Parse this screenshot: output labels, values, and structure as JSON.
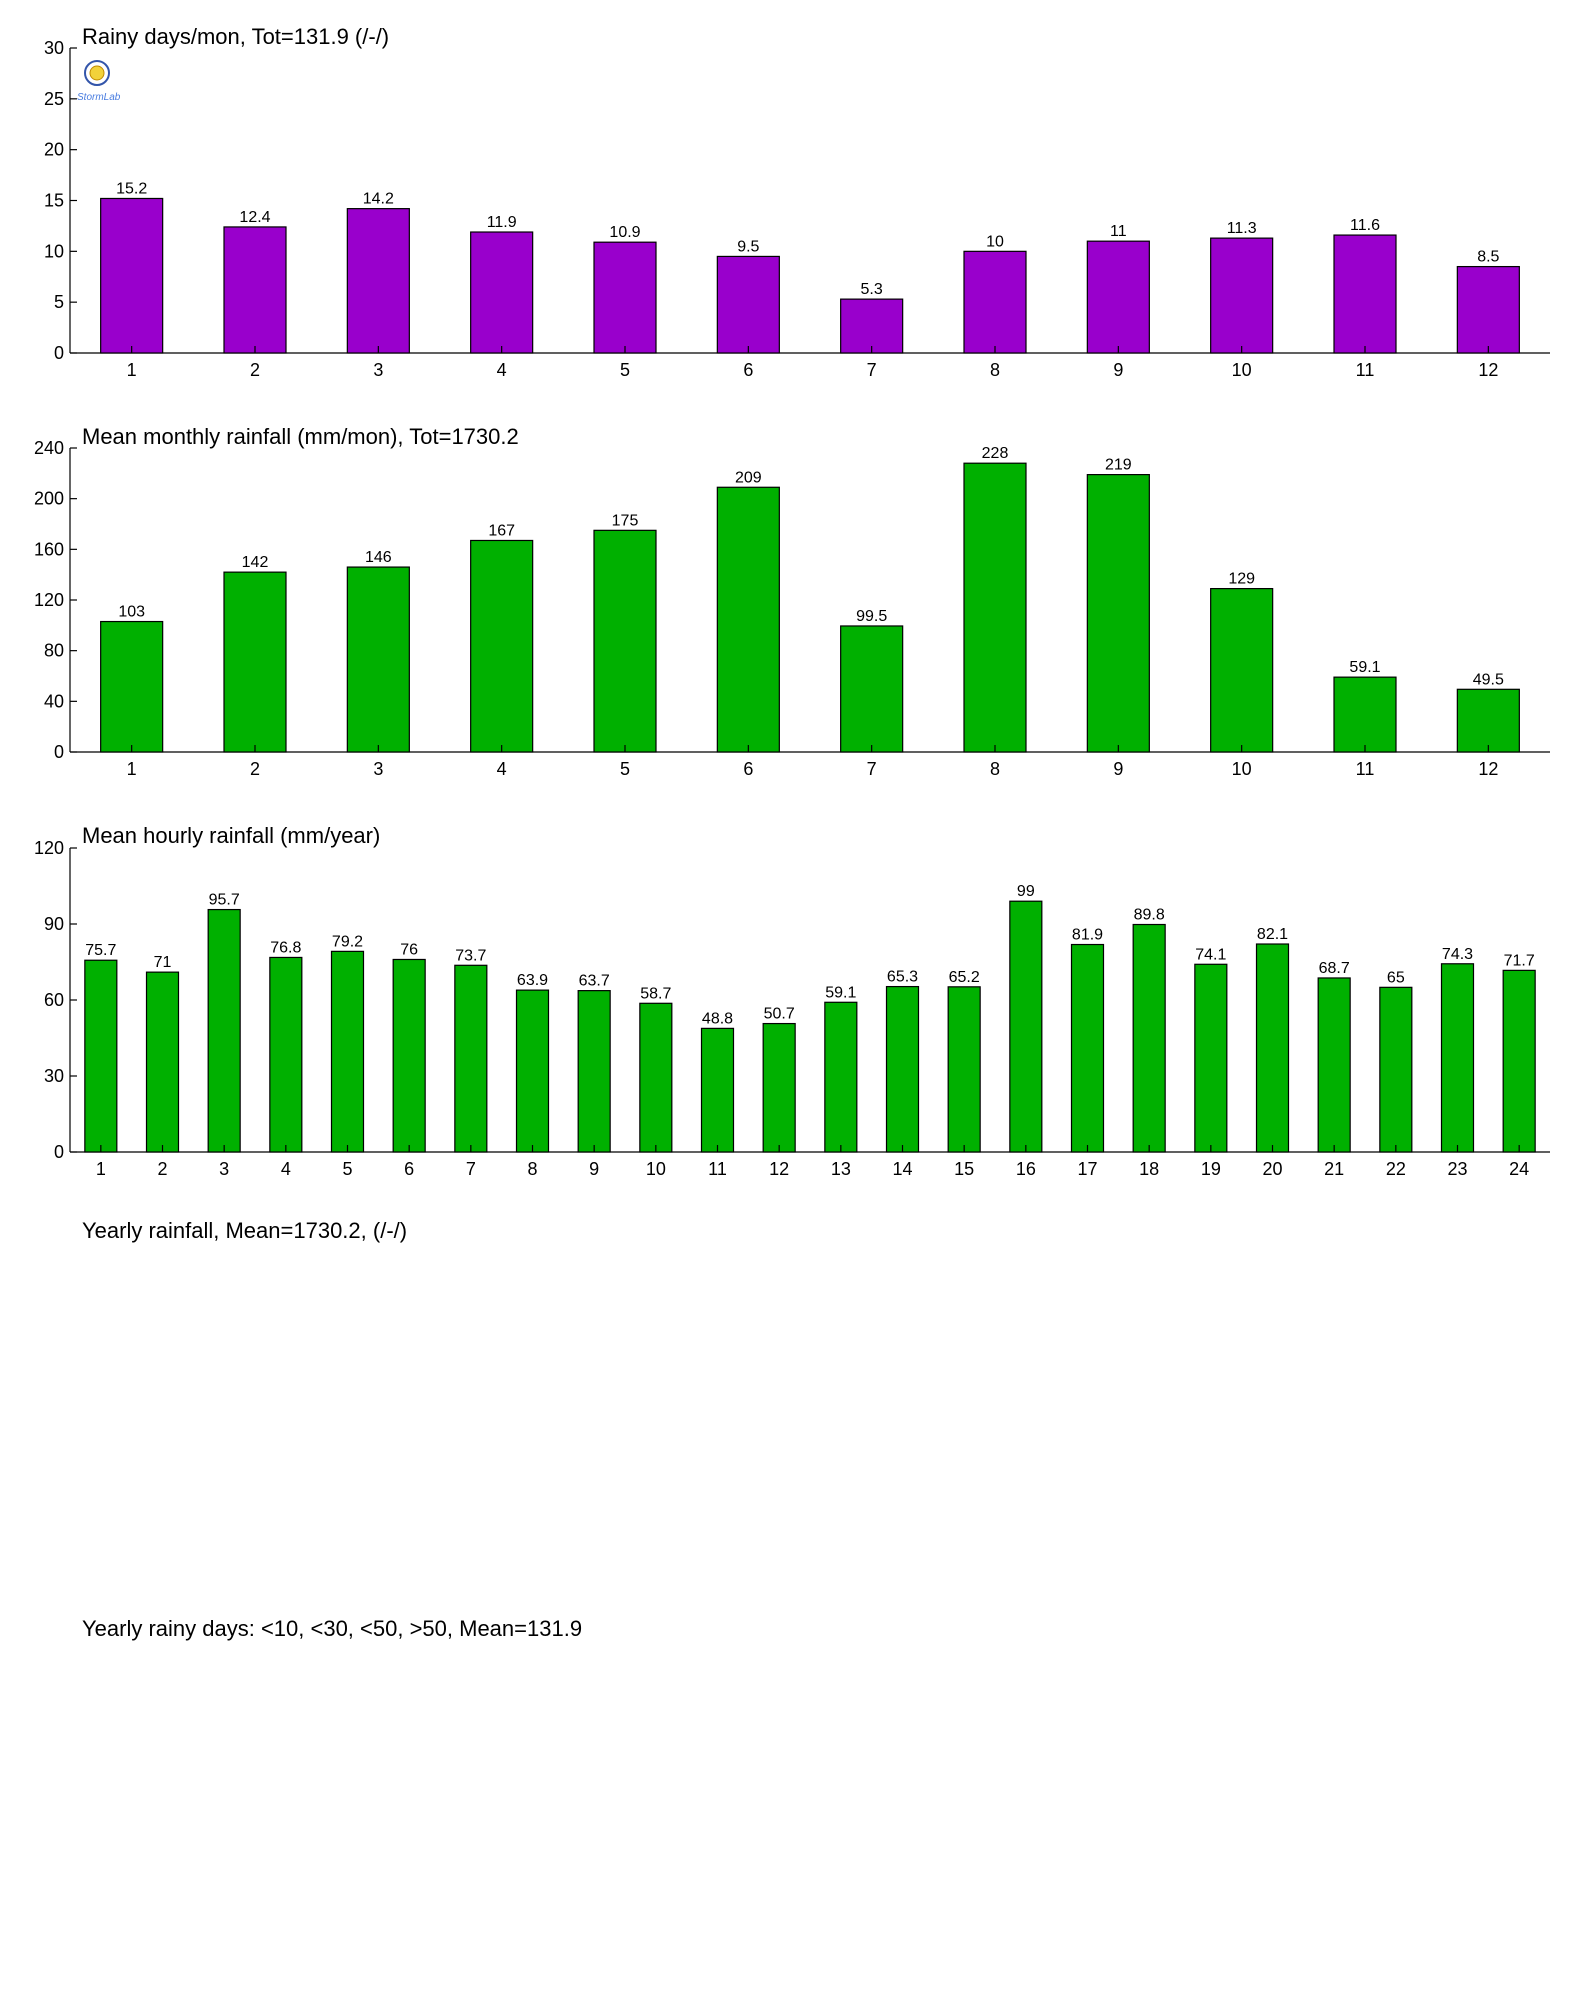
{
  "chart_data": [
    {
      "type": "bar",
      "title": "Rainy days/mon, Tot=131.9 (/-/)",
      "categories": [
        "1",
        "2",
        "3",
        "4",
        "5",
        "6",
        "7",
        "8",
        "9",
        "10",
        "11",
        "12"
      ],
      "values": [
        15.2,
        12.4,
        14.2,
        11.9,
        10.9,
        9.5,
        5.3,
        10,
        11,
        11.3,
        11.6,
        8.5
      ],
      "value_labels": [
        "15.2",
        "12.4",
        "14.2",
        "11.9",
        "10.9",
        "9.5",
        "5.3",
        "10",
        "11",
        "11.3",
        "11.6",
        "8.5"
      ],
      "ylim": [
        0,
        30
      ],
      "yticks": [
        0,
        5,
        10,
        15,
        20,
        25,
        30
      ],
      "color": "#9900cc"
    },
    {
      "type": "bar",
      "title": "Mean monthly rainfall (mm/mon), Tot=1730.2",
      "categories": [
        "1",
        "2",
        "3",
        "4",
        "5",
        "6",
        "7",
        "8",
        "9",
        "10",
        "11",
        "12"
      ],
      "values": [
        103,
        142,
        146,
        167,
        175,
        209,
        99.5,
        228,
        219,
        129,
        59.1,
        49.5
      ],
      "value_labels": [
        "103",
        "142",
        "146",
        "167",
        "175",
        "209",
        "99.5",
        "228",
        "219",
        "129",
        "59.1",
        "49.5"
      ],
      "ylim": [
        0,
        240
      ],
      "yticks": [
        0,
        40,
        80,
        120,
        160,
        200,
        240
      ],
      "color": "#00b000"
    },
    {
      "type": "bar",
      "title": "Mean hourly rainfall (mm/year)",
      "categories": [
        "1",
        "2",
        "3",
        "4",
        "5",
        "6",
        "7",
        "8",
        "9",
        "10",
        "11",
        "12",
        "13",
        "14",
        "15",
        "16",
        "17",
        "18",
        "19",
        "20",
        "21",
        "22",
        "23",
        "24"
      ],
      "values": [
        75.7,
        71,
        95.7,
        76.8,
        79.2,
        76,
        73.7,
        63.9,
        63.7,
        58.7,
        48.8,
        50.7,
        59.1,
        65.3,
        65.2,
        99,
        81.9,
        89.8,
        74.1,
        82.1,
        68.7,
        65,
        74.3,
        71.7
      ],
      "value_labels": [
        "75.7",
        "71",
        "95.7",
        "76.8",
        "79.2",
        "76",
        "73.7",
        "63.9",
        "63.7",
        "58.7",
        "48.8",
        "50.7",
        "59.1",
        "65.3",
        "65.2",
        "99",
        "81.9",
        "89.8",
        "74.1",
        "82.1",
        "68.7",
        "65",
        "74.3",
        "71.7"
      ],
      "ylim": [
        0,
        120
      ],
      "yticks": [
        0,
        30,
        60,
        90,
        120
      ],
      "color": "#00b000"
    }
  ],
  "empty_panels": [
    {
      "title": "Yearly rainfall, Mean=1730.2, (/-/)"
    },
    {
      "title": "Yearly rainy days: <10, <30, <50, >50, Mean=131.9"
    }
  ],
  "logo": {
    "icon": "lab-logo-icon",
    "text": "StormLab"
  }
}
